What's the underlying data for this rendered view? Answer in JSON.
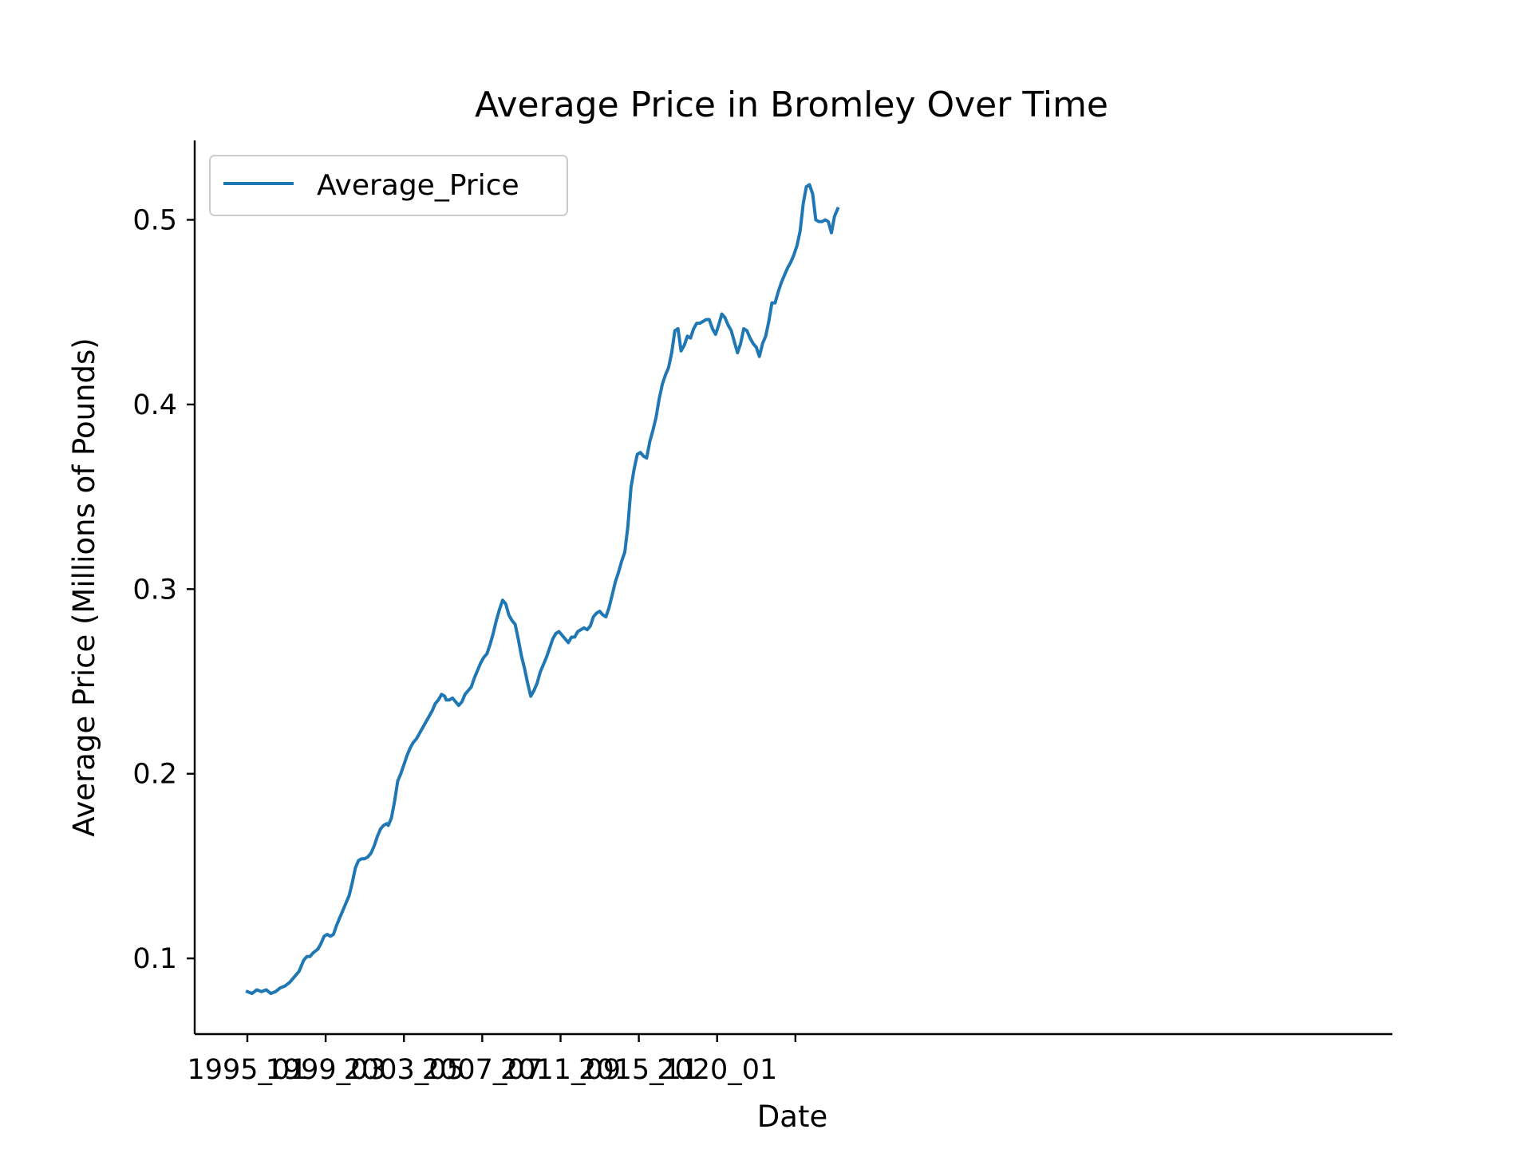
{
  "chart_data": {
    "type": "line",
    "title": "Average Price in Bromley Over Time",
    "xlabel": "Date",
    "ylabel": "Average Price (Millions of Pounds)",
    "x_tick_labels": [
      "1995_01",
      "1999_03",
      "2003_05",
      "2007_07",
      "2011_09",
      "2015_11",
      "2020_01",
      ""
    ],
    "x_tick_indices": [
      0,
      50,
      100,
      150,
      200,
      250,
      300,
      350
    ],
    "ylim": [
      0.059,
      0.543
    ],
    "y_ticks": [
      0.1,
      0.2,
      0.3,
      0.4,
      0.5
    ],
    "y_tick_labels": [
      "0.1",
      "0.2",
      "0.3",
      "0.4",
      "0.5"
    ],
    "grid": false,
    "legend_position": "top-left",
    "line_color": "#1f77b4",
    "series": [
      {
        "name": "Average_Price",
        "points": [
          [
            0,
            0.082
          ],
          [
            3,
            0.081
          ],
          [
            6,
            0.083
          ],
          [
            9,
            0.082
          ],
          [
            12,
            0.083
          ],
          [
            15,
            0.081
          ],
          [
            18,
            0.082
          ],
          [
            21,
            0.084
          ],
          [
            24,
            0.085
          ],
          [
            27,
            0.087
          ],
          [
            30,
            0.09
          ],
          [
            33,
            0.093
          ],
          [
            36,
            0.099
          ],
          [
            38,
            0.101
          ],
          [
            40,
            0.101
          ],
          [
            42,
            0.103
          ],
          [
            45,
            0.105
          ],
          [
            47,
            0.108
          ],
          [
            49,
            0.112
          ],
          [
            51,
            0.113
          ],
          [
            53,
            0.112
          ],
          [
            55,
            0.113
          ],
          [
            57,
            0.118
          ],
          [
            59,
            0.122
          ],
          [
            61,
            0.126
          ],
          [
            63,
            0.13
          ],
          [
            65,
            0.134
          ],
          [
            67,
            0.141
          ],
          [
            69,
            0.149
          ],
          [
            71,
            0.153
          ],
          [
            73,
            0.154
          ],
          [
            75,
            0.154
          ],
          [
            77,
            0.155
          ],
          [
            79,
            0.157
          ],
          [
            81,
            0.161
          ],
          [
            83,
            0.166
          ],
          [
            85,
            0.17
          ],
          [
            87,
            0.172
          ],
          [
            89,
            0.173
          ],
          [
            90,
            0.172
          ],
          [
            92,
            0.176
          ],
          [
            94,
            0.185
          ],
          [
            96,
            0.196
          ],
          [
            98,
            0.2
          ],
          [
            100,
            0.205
          ],
          [
            102,
            0.21
          ],
          [
            104,
            0.214
          ],
          [
            106,
            0.217
          ],
          [
            108,
            0.219
          ],
          [
            110,
            0.222
          ],
          [
            112,
            0.225
          ],
          [
            114,
            0.228
          ],
          [
            116,
            0.231
          ],
          [
            118,
            0.234
          ],
          [
            120,
            0.238
          ],
          [
            122,
            0.24
          ],
          [
            124,
            0.243
          ],
          [
            126,
            0.242
          ],
          [
            127,
            0.24
          ],
          [
            129,
            0.24
          ],
          [
            131,
            0.241
          ],
          [
            133,
            0.239
          ],
          [
            135,
            0.237
          ],
          [
            137,
            0.239
          ],
          [
            139,
            0.243
          ],
          [
            141,
            0.245
          ],
          [
            143,
            0.247
          ],
          [
            145,
            0.252
          ],
          [
            147,
            0.256
          ],
          [
            149,
            0.26
          ],
          [
            151,
            0.263
          ],
          [
            153,
            0.265
          ],
          [
            155,
            0.27
          ],
          [
            157,
            0.276
          ],
          [
            159,
            0.283
          ],
          [
            161,
            0.289
          ],
          [
            163,
            0.294
          ],
          [
            165,
            0.292
          ],
          [
            167,
            0.286
          ],
          [
            169,
            0.283
          ],
          [
            171,
            0.281
          ],
          [
            173,
            0.273
          ],
          [
            175,
            0.264
          ],
          [
            177,
            0.257
          ],
          [
            179,
            0.249
          ],
          [
            181,
            0.242
          ],
          [
            183,
            0.245
          ],
          [
            185,
            0.249
          ],
          [
            187,
            0.255
          ],
          [
            189,
            0.259
          ],
          [
            191,
            0.263
          ],
          [
            193,
            0.268
          ],
          [
            195,
            0.273
          ],
          [
            197,
            0.276
          ],
          [
            199,
            0.277
          ],
          [
            201,
            0.275
          ],
          [
            203,
            0.273
          ],
          [
            205,
            0.271
          ],
          [
            207,
            0.274
          ],
          [
            209,
            0.274
          ],
          [
            211,
            0.277
          ],
          [
            213,
            0.278
          ],
          [
            215,
            0.279
          ],
          [
            217,
            0.278
          ],
          [
            219,
            0.28
          ],
          [
            221,
            0.285
          ],
          [
            223,
            0.287
          ],
          [
            225,
            0.288
          ],
          [
            227,
            0.286
          ],
          [
            229,
            0.285
          ],
          [
            231,
            0.29
          ],
          [
            233,
            0.297
          ],
          [
            235,
            0.304
          ],
          [
            237,
            0.309
          ],
          [
            239,
            0.315
          ],
          [
            241,
            0.32
          ],
          [
            243,
            0.334
          ],
          [
            245,
            0.355
          ],
          [
            247,
            0.365
          ],
          [
            249,
            0.373
          ],
          [
            251,
            0.374
          ],
          [
            253,
            0.372
          ],
          [
            255,
            0.371
          ],
          [
            257,
            0.38
          ],
          [
            259,
            0.386
          ],
          [
            261,
            0.393
          ],
          [
            263,
            0.403
          ],
          [
            265,
            0.411
          ],
          [
            267,
            0.416
          ],
          [
            269,
            0.42
          ],
          [
            271,
            0.428
          ],
          [
            273,
            0.44
          ],
          [
            275,
            0.441
          ],
          [
            277,
            0.429
          ],
          [
            279,
            0.432
          ],
          [
            281,
            0.437
          ],
          [
            283,
            0.436
          ],
          [
            285,
            0.441
          ],
          [
            287,
            0.444
          ],
          [
            289,
            0.444
          ],
          [
            291,
            0.445
          ],
          [
            293,
            0.446
          ],
          [
            295,
            0.446
          ],
          [
            297,
            0.441
          ],
          [
            299,
            0.438
          ],
          [
            301,
            0.443
          ],
          [
            303,
            0.449
          ],
          [
            305,
            0.447
          ],
          [
            307,
            0.443
          ],
          [
            309,
            0.44
          ],
          [
            311,
            0.434
          ],
          [
            313,
            0.428
          ],
          [
            315,
            0.433
          ],
          [
            317,
            0.441
          ],
          [
            319,
            0.44
          ],
          [
            321,
            0.436
          ],
          [
            323,
            0.433
          ],
          [
            325,
            0.431
          ],
          [
            327,
            0.426
          ],
          [
            329,
            0.433
          ],
          [
            331,
            0.437
          ],
          [
            333,
            0.445
          ],
          [
            335,
            0.455
          ],
          [
            337,
            0.455
          ],
          [
            339,
            0.461
          ],
          [
            341,
            0.466
          ],
          [
            343,
            0.47
          ],
          [
            345,
            0.474
          ],
          [
            347,
            0.477
          ],
          [
            349,
            0.481
          ],
          [
            351,
            0.486
          ],
          [
            353,
            0.494
          ],
          [
            355,
            0.509
          ],
          [
            357,
            0.518
          ],
          [
            359,
            0.519
          ],
          [
            361,
            0.514
          ],
          [
            363,
            0.5
          ],
          [
            365,
            0.499
          ],
          [
            367,
            0.499
          ],
          [
            369,
            0.5
          ],
          [
            371,
            0.499
          ],
          [
            373,
            0.493
          ],
          [
            375,
            0.502
          ],
          [
            377,
            0.506
          ]
        ]
      }
    ]
  }
}
